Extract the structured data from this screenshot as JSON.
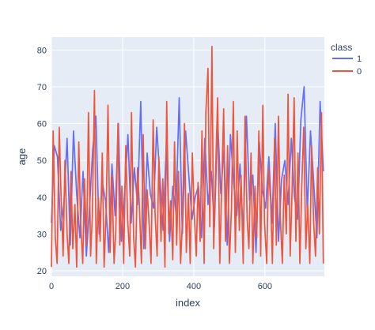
{
  "chart_data": {
    "type": "line",
    "xlabel": "index",
    "ylabel": "age",
    "xlim": [
      0,
      767
    ],
    "ylim": [
      18.5,
      83.5
    ],
    "xticks": [
      0,
      200,
      400,
      600
    ],
    "yticks": [
      20,
      30,
      40,
      50,
      60,
      70,
      80
    ],
    "grid": true,
    "legend": {
      "title": "class",
      "position": "top-right"
    },
    "colors": {
      "plot_bg": "#e5ecf6",
      "grid": "#ffffff",
      "text": "#2a3f5f"
    },
    "series": [
      {
        "name": "1",
        "color": "#636efa",
        "x": [
          0,
          8,
          17,
          26,
          35,
          44,
          53,
          62,
          71,
          80,
          89,
          98,
          107,
          116,
          125,
          134,
          143,
          152,
          161,
          170,
          179,
          188,
          197,
          206,
          215,
          224,
          233,
          242,
          251,
          260,
          269,
          278,
          287,
          296,
          305,
          314,
          323,
          332,
          341,
          350,
          359,
          368,
          377,
          386,
          395,
          404,
          413,
          422,
          431,
          440,
          449,
          458,
          467,
          476,
          485,
          494,
          503,
          512,
          521,
          530,
          539,
          548,
          557,
          566,
          575,
          584,
          593,
          602,
          611,
          620,
          629,
          638,
          647,
          656,
          665,
          674,
          683,
          692,
          701,
          710,
          719,
          728,
          737,
          746,
          755,
          764
        ],
        "y": [
          33,
          54,
          51,
          31,
          38,
          56,
          27,
          58,
          41,
          29,
          47,
          24,
          37,
          53,
          62,
          30,
          44,
          39,
          25,
          49,
          35,
          60,
          28,
          42,
          57,
          33,
          48,
          38,
          66,
          26,
          52,
          41,
          37,
          59,
          45,
          31,
          55,
          28,
          43,
          36,
          67,
          30,
          58,
          46,
          34,
          40,
          43,
          29,
          56,
          38,
          47,
          32,
          61,
          41,
          53,
          27,
          57,
          44,
          35,
          49,
          30,
          62,
          39,
          46,
          25,
          55,
          42,
          37,
          51,
          33,
          60,
          28,
          45,
          50,
          38,
          56,
          40,
          34,
          61,
          70,
          36,
          58,
          44,
          29,
          66,
          47
        ]
      },
      {
        "name": "0",
        "color": "#ef553b",
        "x": [
          0,
          5,
          11,
          16,
          22,
          27,
          33,
          38,
          44,
          49,
          55,
          60,
          66,
          71,
          77,
          82,
          88,
          93,
          99,
          104,
          110,
          115,
          121,
          126,
          132,
          137,
          143,
          148,
          154,
          159,
          165,
          170,
          176,
          181,
          187,
          192,
          198,
          203,
          209,
          214,
          220,
          225,
          231,
          236,
          242,
          247,
          253,
          258,
          264,
          269,
          275,
          280,
          286,
          291,
          297,
          302,
          308,
          313,
          319,
          324,
          330,
          335,
          341,
          346,
          352,
          357,
          363,
          368,
          374,
          379,
          385,
          390,
          396,
          401,
          407,
          412,
          418,
          423,
          429,
          434,
          440,
          445,
          451,
          456,
          462,
          467,
          473,
          478,
          484,
          489,
          495,
          500,
          506,
          511,
          517,
          522,
          528,
          533,
          539,
          544,
          550,
          555,
          561,
          566,
          572,
          577,
          583,
          588,
          594,
          599,
          605,
          610,
          616,
          621,
          627,
          632,
          638,
          643,
          649,
          654,
          660,
          665,
          671,
          676,
          682,
          687,
          693,
          698,
          704,
          709,
          715,
          720,
          726,
          731,
          737,
          742,
          748,
          753,
          759,
          764
        ],
        "y": [
          21,
          58,
          29,
          22,
          59,
          41,
          24,
          50,
          30,
          22,
          47,
          26,
          38,
          21,
          55,
          33,
          22,
          45,
          27,
          63,
          24,
          35,
          69,
          22,
          40,
          28,
          52,
          21,
          37,
          65,
          25,
          46,
          22,
          31,
          60,
          27,
          43,
          22,
          54,
          34,
          24,
          63,
          29,
          21,
          48,
          38,
          22,
          57,
          26,
          42,
          32,
          22,
          61,
          36,
          24,
          51,
          28,
          45,
          21,
          66,
          30,
          39,
          23,
          55,
          27,
          47,
          22,
          33,
          60,
          25,
          41,
          22,
          52,
          36,
          24,
          44,
          28,
          58,
          22,
          63,
          75,
          32,
          81,
          26,
          49,
          67,
          22,
          41,
          64,
          28,
          54,
          22,
          37,
          66,
          25,
          58,
          31,
          46,
          22,
          62,
          34,
          26,
          52,
          22,
          43,
          29,
          58,
          24,
          65,
          33,
          22,
          48,
          39,
          22,
          56,
          27,
          62,
          35,
          22,
          46,
          30,
          68,
          24,
          41,
          67,
          28,
          52,
          22,
          45,
          59,
          26,
          38,
          22,
          54,
          33,
          24,
          48,
          30,
          63,
          22
        ]
      }
    ]
  }
}
